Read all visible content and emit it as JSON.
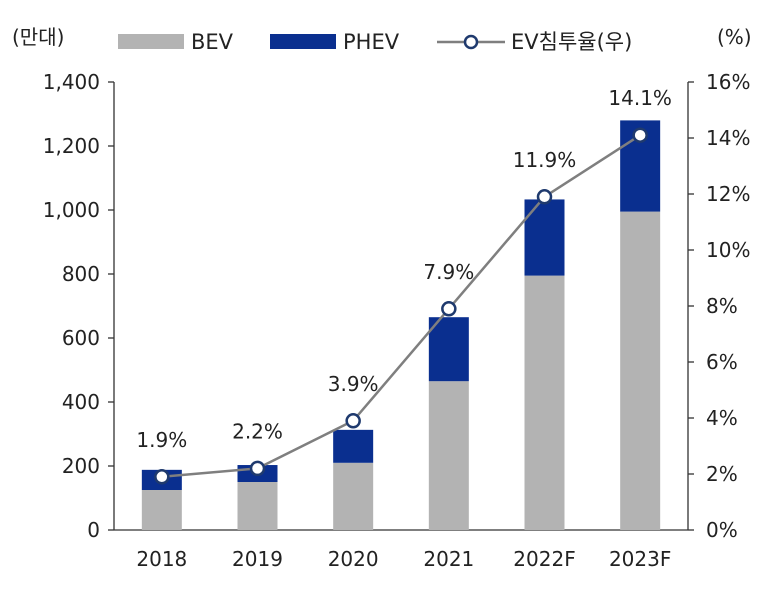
{
  "chart_data": {
    "type": "bar",
    "stacked": true,
    "categories": [
      "2018",
      "2019",
      "2020",
      "2021",
      "2022F",
      "2023F"
    ],
    "series": [
      {
        "name": "BEV",
        "kind": "bar",
        "axis": "left",
        "color": "#b3b3b3",
        "values": [
          125,
          150,
          210,
          465,
          795,
          995
        ]
      },
      {
        "name": "PHEV",
        "kind": "bar",
        "axis": "left",
        "color": "#0a2f8f",
        "values": [
          63,
          53,
          103,
          200,
          238,
          285
        ]
      },
      {
        "name": "EV침투율(우)",
        "kind": "line",
        "axis": "right",
        "color": "#7f7f7f",
        "marker_edge": "#1f3a6e",
        "values": [
          1.9,
          2.2,
          3.9,
          7.9,
          11.9,
          14.1
        ],
        "labels": [
          "1.9%",
          "2.2%",
          "3.9%",
          "7.9%",
          "11.9%",
          "14.1%"
        ]
      }
    ],
    "left_axis": {
      "unit": "(만대)",
      "ylim": [
        0,
        1400
      ],
      "ticks": [
        "0",
        "200",
        "400",
        "600",
        "800",
        "1,000",
        "1,200",
        "1,400"
      ]
    },
    "right_axis": {
      "unit": "(%)",
      "ylim": [
        0,
        16
      ],
      "ticks": [
        "0%",
        "2%",
        "4%",
        "6%",
        "8%",
        "10%",
        "12%",
        "14%",
        "16%"
      ]
    },
    "legend": {
      "placement": "top",
      "entries": [
        "BEV",
        "PHEV",
        "EV침투율(우)"
      ]
    },
    "grid": false
  }
}
